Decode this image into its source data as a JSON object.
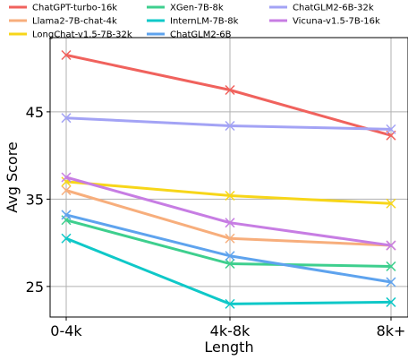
{
  "chart_data": {
    "type": "line",
    "categories": [
      "0-4k",
      "4k-8k",
      "8k+"
    ],
    "xlabel": "Length",
    "ylabel": "Avg Score",
    "yticks": [
      25,
      35,
      45
    ],
    "ylim": [
      21.5,
      53.5
    ],
    "grid": true,
    "legend_placement": "top, 3 columns",
    "series": [
      {
        "name": "ChatGPT-turbo-16k",
        "color": "#f0625d",
        "values": [
          51.5,
          47.5,
          42.3
        ]
      },
      {
        "name": "Llama2-7B-chat-4k",
        "color": "#f7ae7c",
        "values": [
          36.0,
          30.5,
          29.7
        ]
      },
      {
        "name": "LongChat-v1.5-7B-32k",
        "color": "#f7d619",
        "values": [
          37.0,
          35.4,
          34.5
        ]
      },
      {
        "name": "XGen-7B-8k",
        "color": "#3ecf8e",
        "values": [
          32.6,
          27.6,
          27.3
        ]
      },
      {
        "name": "InternLM-7B-8k",
        "color": "#0fc8c8",
        "values": [
          30.5,
          23.0,
          23.2
        ]
      },
      {
        "name": "ChatGLM2-6B",
        "color": "#5ea3ee",
        "values": [
          33.2,
          28.5,
          25.5
        ]
      },
      {
        "name": "ChatGLM2-6B-32k",
        "color": "#a3a3f5",
        "values": [
          44.3,
          43.4,
          43.0
        ]
      },
      {
        "name": "Vicuna-v1.5-7B-16k",
        "color": "#c77de3",
        "values": [
          37.5,
          32.3,
          29.7
        ]
      }
    ]
  }
}
